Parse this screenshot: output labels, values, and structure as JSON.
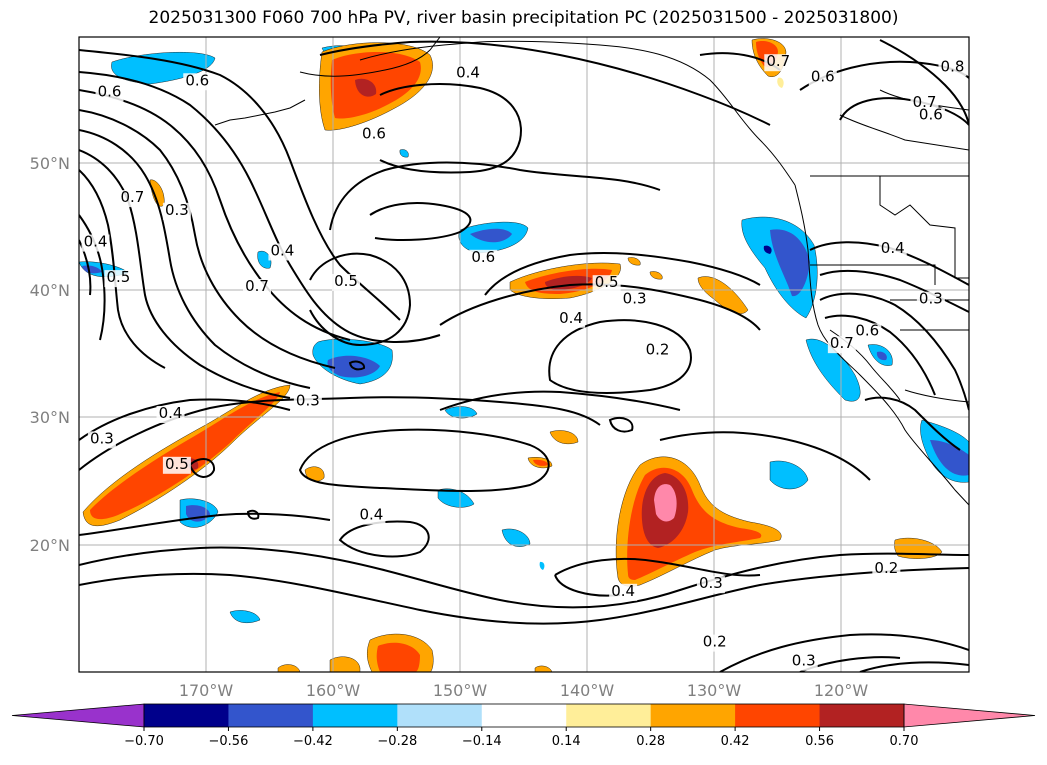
{
  "title": "2025031300 F060 700 hPa PV, river basin precipitation PC (2025031500 - 2025031800)",
  "map": {
    "lon_range": [
      -180,
      -110
    ],
    "lat_range": [
      10,
      60
    ],
    "lat_labels": [
      "50°N",
      "40°N",
      "30°N",
      "20°N"
    ],
    "lon_labels": [
      "170°W",
      "160°W",
      "150°W",
      "140°W",
      "130°W",
      "120°W"
    ],
    "contour_labels": [
      {
        "text": "0.6",
        "lon": -177.6,
        "lat": 55.3
      },
      {
        "text": "0.4",
        "lon": -149.4,
        "lat": 56.8
      },
      {
        "text": "0.6",
        "lon": -170.7,
        "lat": 56.2
      },
      {
        "text": "0.6",
        "lon": -156.8,
        "lat": 52.0
      },
      {
        "text": "0.7",
        "lon": -175.8,
        "lat": 47.0
      },
      {
        "text": "0.3",
        "lon": -172.3,
        "lat": 46.0
      },
      {
        "text": "0.4",
        "lon": -178.7,
        "lat": 43.5
      },
      {
        "text": "0.5",
        "lon": -176.9,
        "lat": 40.7
      },
      {
        "text": "0.4",
        "lon": -164.0,
        "lat": 42.8
      },
      {
        "text": "0.5",
        "lon": -159.0,
        "lat": 40.4
      },
      {
        "text": "0.6",
        "lon": -148.2,
        "lat": 42.3
      },
      {
        "text": "0.5",
        "lon": -138.5,
        "lat": 40.3
      },
      {
        "text": "0.3",
        "lon": -136.3,
        "lat": 39.0
      },
      {
        "text": "0.4",
        "lon": -141.3,
        "lat": 37.5
      },
      {
        "text": "0.2",
        "lon": -134.5,
        "lat": 35.0
      },
      {
        "text": "0.7",
        "lon": -166.0,
        "lat": 40.0
      },
      {
        "text": "0.3",
        "lon": -162.0,
        "lat": 31.0
      },
      {
        "text": "0.4",
        "lon": -172.8,
        "lat": 30.0
      },
      {
        "text": "0.3",
        "lon": -178.2,
        "lat": 28.0
      },
      {
        "text": "0.5",
        "lon": -172.3,
        "lat": 26.0
      },
      {
        "text": "0.4",
        "lon": -157.0,
        "lat": 22.0
      },
      {
        "text": "0.4",
        "lon": -137.2,
        "lat": 16.0
      },
      {
        "text": "0.3",
        "lon": -130.3,
        "lat": 16.6
      },
      {
        "text": "0.2",
        "lon": -116.5,
        "lat": 17.8
      },
      {
        "text": "0.2",
        "lon": -130.0,
        "lat": 12.0
      },
      {
        "text": "0.3",
        "lon": -123.0,
        "lat": 10.5
      },
      {
        "text": "0.4",
        "lon": -116.0,
        "lat": 43.0
      },
      {
        "text": "0.3",
        "lon": -113.0,
        "lat": 39.0
      },
      {
        "text": "0.7",
        "lon": -120.0,
        "lat": 35.5
      },
      {
        "text": "0.6",
        "lon": -118.0,
        "lat": 36.5
      },
      {
        "text": "0.7",
        "lon": -125.0,
        "lat": 57.7
      },
      {
        "text": "0.6",
        "lon": -121.5,
        "lat": 56.5
      },
      {
        "text": "0.8",
        "lon": -111.3,
        "lat": 57.3
      },
      {
        "text": "0.7",
        "lon": -113.5,
        "lat": 54.5
      },
      {
        "text": "0.6",
        "lon": -113.0,
        "lat": 53.5
      }
    ]
  },
  "colorbar": {
    "ticks": [
      "−0.70",
      "−0.56",
      "−0.42",
      "−0.28",
      "−0.14",
      "0.14",
      "0.28",
      "0.42",
      "0.56",
      "0.70"
    ],
    "colors": [
      "#9932cc",
      "#00008b",
      "#3355cc",
      "#00bfff",
      "#b0e0fa",
      "#ffffff",
      "#ffee99",
      "#ffa500",
      "#ff4500",
      "#b22222",
      "#ff88aa"
    ]
  }
}
